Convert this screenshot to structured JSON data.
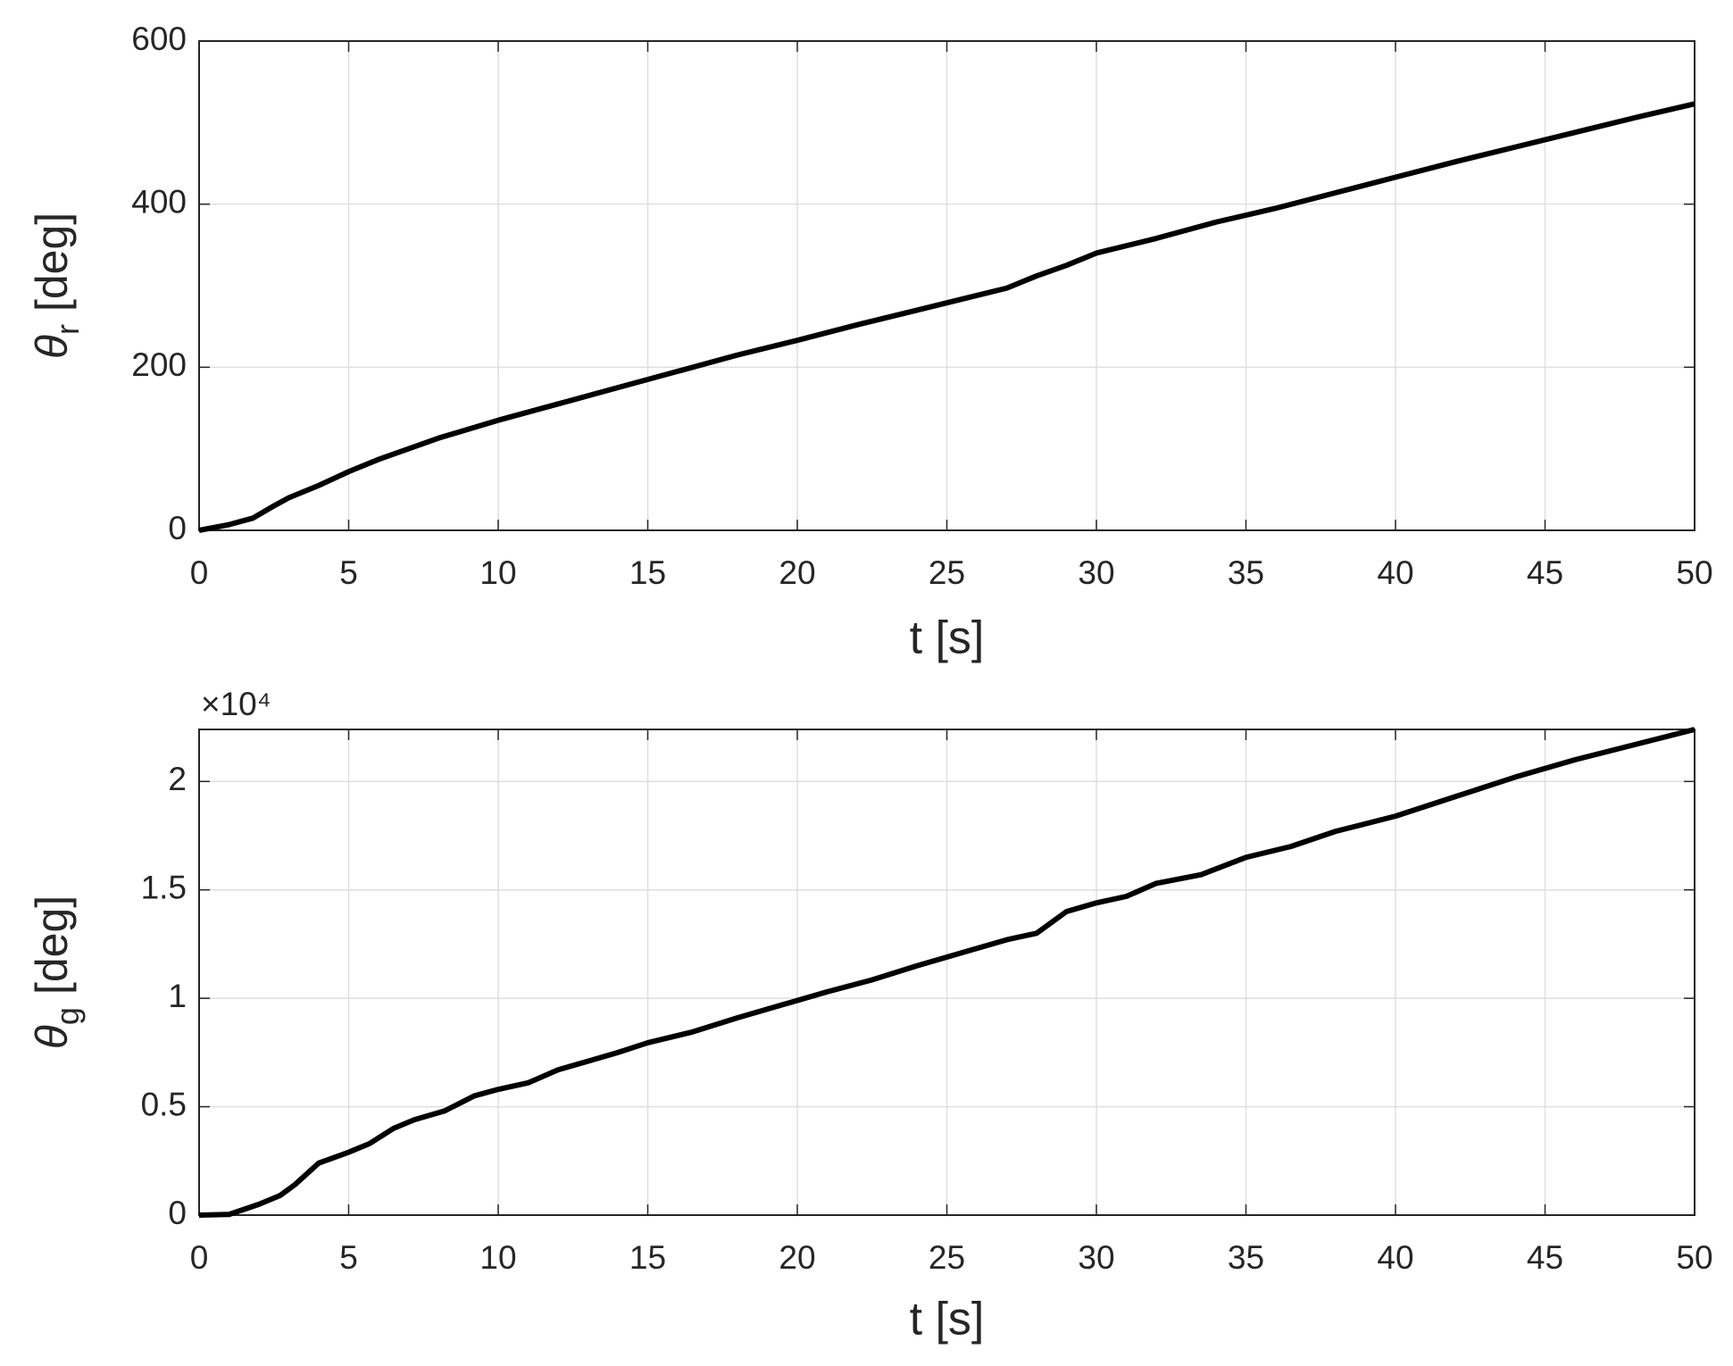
{
  "chart_data": [
    {
      "type": "line",
      "xlabel": "t [s]",
      "ylabel": {
        "symbol": "θ",
        "subscript": "r",
        "unit": "[deg]"
      },
      "xlim": [
        0,
        50
      ],
      "xticks": [
        0,
        5,
        10,
        15,
        20,
        25,
        30,
        35,
        40,
        45,
        50
      ],
      "ylim": [
        0,
        600
      ],
      "yticks": [
        0,
        200,
        400,
        600
      ],
      "grid": true,
      "x": [
        0,
        1,
        1.8,
        2.5,
        3,
        4,
        5,
        6,
        7,
        8,
        9,
        10,
        12,
        14,
        16,
        18,
        20,
        22,
        24,
        26,
        27,
        28,
        29,
        30,
        32,
        34,
        36,
        38,
        40,
        42,
        44,
        46,
        48,
        50
      ],
      "series": [
        {
          "color": "#000000",
          "values": [
            0,
            7,
            15,
            30,
            40,
            55,
            72,
            87,
            100,
            113,
            124,
            135,
            155,
            175,
            195,
            215,
            233,
            252,
            270,
            288,
            297,
            312,
            325,
            340,
            358,
            378,
            395,
            414,
            433,
            452,
            470,
            488,
            506,
            523
          ]
        }
      ]
    },
    {
      "type": "line",
      "xlabel": "t [s]",
      "ylabel": {
        "symbol": "θ",
        "subscript": "g",
        "unit": "[deg]"
      },
      "y_multiplier": "×10⁴",
      "xlim": [
        0,
        50
      ],
      "xticks": [
        0,
        5,
        10,
        15,
        20,
        25,
        30,
        35,
        40,
        45,
        50
      ],
      "ylim": [
        0,
        22400
      ],
      "yticks": [
        0,
        {
          "value": 5000,
          "label": "0.5"
        },
        {
          "value": 10000,
          "label": "1"
        },
        {
          "value": 15000,
          "label": "1.5"
        },
        {
          "value": 20000,
          "label": "2"
        }
      ],
      "grid": true,
      "x": [
        0,
        1,
        2,
        2.7,
        3.2,
        4,
        5,
        5.7,
        6.5,
        7.2,
        8.2,
        9.2,
        10,
        11,
        12,
        13,
        14,
        15,
        16.5,
        18,
        19.5,
        21,
        22.5,
        24,
        25.5,
        27,
        28,
        29,
        30,
        31,
        32,
        33.5,
        35,
        36.5,
        38,
        40,
        42,
        44,
        46,
        48,
        50
      ],
      "series": [
        {
          "color": "#000000",
          "values": [
            0,
            30,
            500,
            900,
            1400,
            2400,
            2900,
            3300,
            4000,
            4400,
            4800,
            5500,
            5800,
            6100,
            6700,
            7100,
            7500,
            7950,
            8450,
            9100,
            9700,
            10300,
            10850,
            11500,
            12100,
            12700,
            13000,
            14000,
            14400,
            14700,
            15300,
            15700,
            16500,
            17000,
            17700,
            18400,
            19300,
            20200,
            21000,
            21700,
            22400
          ]
        }
      ]
    }
  ]
}
